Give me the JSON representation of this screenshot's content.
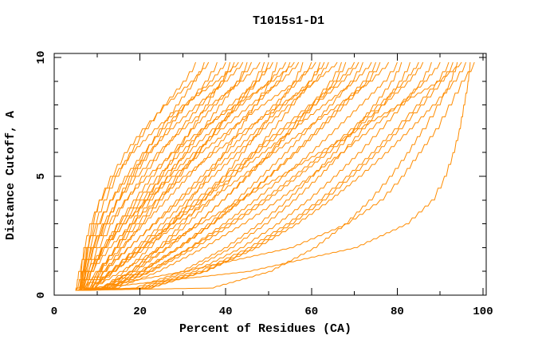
{
  "chart_data": {
    "type": "line",
    "title": "T1015s1-D1",
    "xlabel": "Percent of Residues (CA)",
    "ylabel": "Distance Cutoff, A",
    "xlim": [
      0,
      100
    ],
    "ylim": [
      0,
      10
    ],
    "x_ticks_major": [
      0,
      20,
      40,
      60,
      80,
      100
    ],
    "x_ticks_minor": [
      10,
      30,
      50,
      70,
      90
    ],
    "y_ticks_major": [
      0,
      5,
      10
    ],
    "y_ticks_minor": [
      1,
      2,
      3,
      4,
      6,
      7,
      8,
      9
    ],
    "grid": false,
    "legend": "none",
    "line_color": "#ff8c00",
    "axis_color": "#000000",
    "background_color": "#ffffff",
    "sample_cutoffs": [
      0.2,
      0.3,
      1,
      2,
      3,
      4,
      5,
      6,
      7,
      8,
      9,
      9.8
    ],
    "series": [
      [
        6,
        6.1,
        6.5,
        7.6,
        9.3,
        11.6,
        14.3,
        17.6,
        21.3,
        25.4,
        30.1,
        33
      ],
      [
        6,
        6.2,
        7.2,
        9.2,
        11.7,
        14.5,
        17.6,
        21,
        24.6,
        28.4,
        32.5,
        35
      ],
      [
        7,
        7,
        7.1,
        7.7,
        8.8,
        10.5,
        13.1,
        16.4,
        20.6,
        25.7,
        31.9,
        36
      ],
      [
        5,
        5.3,
        6.4,
        8.7,
        11.5,
        14.7,
        18.2,
        22.1,
        26.2,
        30.5,
        35.2,
        38
      ],
      [
        6,
        6.1,
        6.6,
        8,
        10.2,
        13,
        16.5,
        20.6,
        25.2,
        30.4,
        36.3,
        40
      ],
      [
        7,
        8.1,
        10.5,
        14.1,
        17.6,
        21.2,
        24.7,
        28.3,
        31.8,
        35.3,
        38.9,
        41
      ],
      [
        6,
        6.3,
        7.5,
        10,
        13.1,
        16.6,
        20.4,
        24.6,
        29.1,
        33.9,
        38.9,
        42
      ],
      [
        5,
        5.1,
        5.7,
        7.3,
        9.8,
        13.1,
        17.1,
        21.7,
        27.1,
        33,
        39.7,
        44
      ],
      [
        6,
        7.2,
        10.1,
        14.1,
        18.2,
        22.3,
        26.3,
        30.4,
        34.4,
        38.5,
        42.6,
        45
      ],
      [
        7,
        7.3,
        8.6,
        11.3,
        14.6,
        18.5,
        22.6,
        27.2,
        32.1,
        37.2,
        42.6,
        46
      ],
      [
        6,
        6.1,
        6.7,
        8.5,
        11.2,
        14.7,
        19,
        24,
        29.8,
        36.2,
        43.4,
        48
      ],
      [
        5,
        6.4,
        9.7,
        14.4,
        19.1,
        23.8,
        28.4,
        33.1,
        37.8,
        42.5,
        47.2,
        50
      ],
      [
        6,
        6.4,
        7.9,
        11,
        14.8,
        19.2,
        24,
        29.3,
        34.9,
        40.8,
        47.1,
        51
      ],
      [
        7,
        11,
        16.2,
        22,
        26.9,
        31.4,
        35.5,
        39.4,
        43.1,
        46.6,
        50,
        52
      ],
      [
        6,
        6.4,
        8,
        11.3,
        15.4,
        20.1,
        25.2,
        30.9,
        36.9,
        43.2,
        49.9,
        54
      ],
      [
        5,
        6.6,
        10.2,
        15.4,
        20.6,
        25.9,
        31.1,
        36.3,
        41.5,
        46.7,
        51.9,
        55
      ],
      [
        6,
        6.1,
        6.9,
        9,
        12.2,
        16.4,
        21.5,
        27.5,
        34.3,
        42,
        50.6,
        56
      ],
      [
        7,
        11.5,
        17.5,
        24,
        29.6,
        34.6,
        39.3,
        43.7,
        47.9,
        51.9,
        55.8,
        58
      ],
      [
        6,
        7.7,
        11.6,
        17.2,
        22.9,
        28.5,
        34.1,
        39.8,
        45.4,
        51,
        56.7,
        60
      ],
      [
        5,
        5.4,
        7.4,
        11.2,
        16,
        21.5,
        27.5,
        34,
        41,
        48.3,
        56.2,
        61
      ],
      [
        6,
        10.9,
        17.5,
        24.6,
        30.8,
        36.4,
        41.4,
        46.3,
        50.9,
        55.3,
        59.5,
        62
      ],
      [
        7,
        8.8,
        12.9,
        18.9,
        24.8,
        30.8,
        36.7,
        42.6,
        48.6,
        54.5,
        60.5,
        64
      ],
      [
        6,
        6.5,
        8.5,
        12.7,
        17.8,
        23.6,
        30.1,
        37.1,
        44.6,
        52.4,
        60.8,
        66
      ],
      [
        5,
        10.5,
        17.9,
        26,
        32.9,
        39.1,
        44.9,
        50.4,
        55.5,
        60.4,
        65.2,
        68
      ],
      [
        6,
        8,
        12.7,
        19.3,
        26,
        32.7,
        39.3,
        46,
        52.7,
        59.3,
        66,
        70
      ],
      [
        7,
        12.7,
        20.3,
        28.6,
        35.8,
        42.2,
        48.1,
        53.8,
        59.1,
        64.2,
        69.1,
        72
      ],
      [
        6,
        8.1,
        13.1,
        20.1,
        27.3,
        34.4,
        41.4,
        48.5,
        55.6,
        62.6,
        69.8,
        74
      ],
      [
        5,
        11.2,
        19.6,
        28.6,
        36.5,
        43.5,
        49.9,
        56.1,
        61.9,
        67.5,
        72.9,
        76
      ],
      [
        6,
        8.2,
        13.5,
        21,
        28.5,
        36,
        43.5,
        51,
        58.5,
        66,
        73.5,
        78
      ],
      [
        7,
        13.4,
        22,
        31.3,
        39.3,
        46.6,
        53.2,
        59.6,
        65.5,
        71.2,
        76.8,
        80
      ],
      [
        6,
        19.6,
        30.8,
        41.1,
        49,
        55.7,
        61.6,
        66.9,
        71.8,
        76.3,
        80.5,
        83
      ],
      [
        5,
        12,
        21.4,
        31.6,
        40.4,
        48.4,
        55.6,
        62.6,
        69.2,
        75.4,
        81.5,
        85
      ],
      [
        6,
        20.4,
        32.4,
        43.4,
        51.8,
        59,
        65.2,
        70.9,
        76,
        80.9,
        85.4,
        88
      ],
      [
        7,
        14.3,
        24,
        34.6,
        43.8,
        52,
        59.5,
        66.8,
        73.6,
        80,
        86.3,
        90
      ],
      [
        6,
        21.1,
        33.7,
        45.2,
        54.1,
        61.6,
        68.1,
        74,
        79.4,
        84.5,
        89.2,
        92
      ],
      [
        5,
        36.4,
        50.1,
        60.5,
        67.7,
        73.4,
        78.2,
        82.3,
        85.9,
        89.3,
        92.3,
        94
      ],
      [
        6,
        21.8,
        35,
        47,
        56.3,
        64.1,
        71,
        77.2,
        82.9,
        88.2,
        93.1,
        96
      ],
      [
        7,
        10,
        45,
        70,
        82,
        88,
        91,
        93,
        94.5,
        95.5,
        96.5,
        97
      ],
      [
        6,
        9,
        30,
        55,
        68,
        76,
        81,
        85,
        89,
        92,
        95,
        98
      ],
      [
        6,
        8.8,
        15.3,
        24.5,
        33.8,
        43.1,
        52.4,
        61.6,
        70.9,
        80.1,
        89.5,
        95
      ],
      [
        7,
        8.3,
        11.4,
        15.7,
        20.1,
        24.5,
        28.9,
        33.3,
        37.6,
        42,
        46.4,
        49
      ],
      [
        6,
        6.4,
        8.1,
        11.7,
        16,
        21,
        26.5,
        32.4,
        38.8,
        45.5,
        52.6,
        57
      ],
      [
        5,
        6.8,
        11,
        17.1,
        23.1,
        29.2,
        35.2,
        41.3,
        47.3,
        53.3,
        59.4,
        63
      ],
      [
        6,
        11.4,
        18.5,
        26.3,
        33,
        39.1,
        44.6,
        49.9,
        54.9,
        59.7,
        64.3,
        67
      ],
      [
        7,
        9,
        13.7,
        20.3,
        27,
        33.7,
        40.3,
        47,
        53.7,
        60.3,
        67,
        71
      ],
      [
        6,
        12.1,
        20.1,
        29,
        36.6,
        43.4,
        49.7,
        55.7,
        61.3,
        66.7,
        72,
        75
      ],
      [
        5,
        18.4,
        29.5,
        39.7,
        47.5,
        54.1,
        59.9,
        65.1,
        69.9,
        74.4,
        78.6,
        81
      ],
      [
        6,
        13,
        22.4,
        32.6,
        41.4,
        49.4,
        56.6,
        63.6,
        70.2,
        76.4,
        82.5,
        86
      ],
      [
        7,
        22.1,
        34.7,
        46.2,
        55.1,
        62.6,
        69.1,
        75,
        80.4,
        85.5,
        90.2,
        93
      ],
      [
        6,
        6,
        6.2,
        6.9,
        8.3,
        10.5,
        13.7,
        18,
        23.4,
        29.9,
        37.7,
        43
      ]
    ]
  }
}
